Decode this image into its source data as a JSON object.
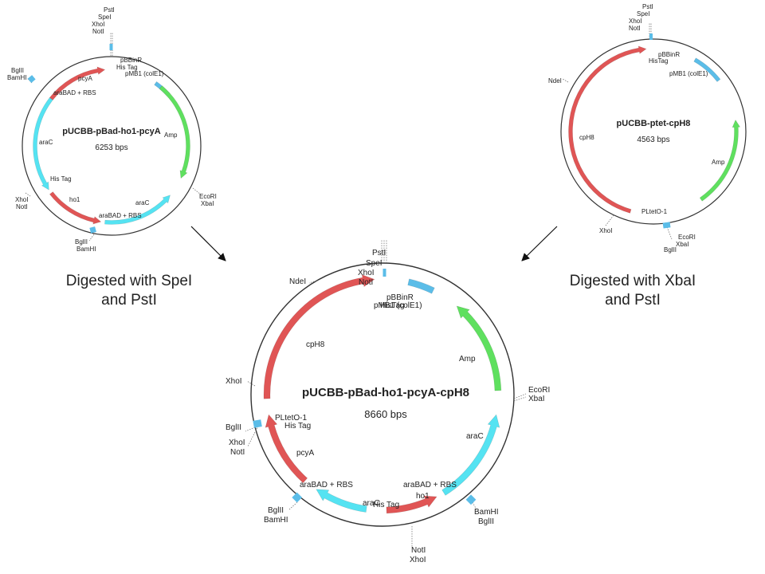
{
  "colors": {
    "backbone": "#333333",
    "red": "#e05555",
    "cyan": "#55e3f2",
    "green": "#5fe05f",
    "blue": "#5bbde8"
  },
  "plasmid_a": {
    "name": "pUCBB-pBad-ho1-pcyA",
    "size": "6253 bps",
    "labels": {
      "pstI": "PstI",
      "speI": "SpeI",
      "xhoI_top": "XhoI",
      "notI_top": "NotI",
      "pbbinr": "pBBinR",
      "histag_top": "His Tag",
      "pmb1": "pMB1 (colE1)",
      "bglII_left": "BglII",
      "bamHI_left": "BamHI",
      "pcyA": "pcyA",
      "arabad_top": "araBAD + RBS",
      "araC_left": "araC",
      "amp": "Amp",
      "histag_left": "His Tag",
      "xhoI_left": "XhoI",
      "notI_left": "NotI",
      "ho1": "ho1",
      "araC_bottom": "araC",
      "arabad_bottom": "araBAD + RBS",
      "ecoRI": "EcoRI",
      "xbaI": "XbaI",
      "bglII_bottom": "BglII",
      "bamHI_bottom": "BamHI"
    }
  },
  "plasmid_b": {
    "name": "pUCBB-ptet-cpH8",
    "size": "4563 bps",
    "labels": {
      "pstI": "PstI",
      "speI": "SpeI",
      "xhoI_top": "XhoI",
      "notI_top": "NotI",
      "pbbinr": "pBBinR",
      "histag": "HisTag",
      "pmb1": "pMB1 (colE1)",
      "ndeI": "NdeI",
      "cpH8": "cpH8",
      "amp": "Amp",
      "pltetO": "PLtetO-1",
      "xhoI_bottom": "XhoI",
      "ecoRI": "EcoRI",
      "xbaI": "XbaI",
      "bglII": "BglII"
    }
  },
  "plasmid_c": {
    "name": "pUCBB-pBad-ho1-pcyA-cpH8",
    "size": "8660 bps",
    "labels": {
      "pstI": "PstI",
      "speI": "SpeI",
      "xhoI_top": "XhoI",
      "notI_top": "NotI",
      "pbbinr": "pBBinR",
      "pmb1": "pMB1 (colE1)",
      "histag_top": "HisTag",
      "ndeI": "NdeI",
      "cpH8": "cpH8",
      "amp": "Amp",
      "xhoI_left": "XhoI",
      "ecoRI": "EcoRI",
      "xbaI": "XbaI",
      "bglII_left": "BglII",
      "pltetO": "PLtetO-1",
      "histag_left": "His Tag",
      "xhoI_left2": "XhoI",
      "notI_left2": "NotI",
      "pcyA": "pcyA",
      "araC_right": "araC",
      "arabad_left": "araBAD + RBS",
      "arabad_right": "araBAD + RBS",
      "ho1": "ho1",
      "araC_bottom": "araC",
      "histag_bottom": "His Tag",
      "bglII_bottom": "BglII",
      "bamHI_bottom": "BamHI",
      "bamHI_right": "BamHI",
      "bglII_right": "BglII",
      "notI_bottom": "NotI",
      "xhoI_bottom": "XhoI"
    }
  },
  "captions": {
    "left_line1": "Digested with SpeI",
    "left_line2": "and PstI",
    "right_line1": "Digested with XbaI",
    "right_line2": "and PstI"
  }
}
